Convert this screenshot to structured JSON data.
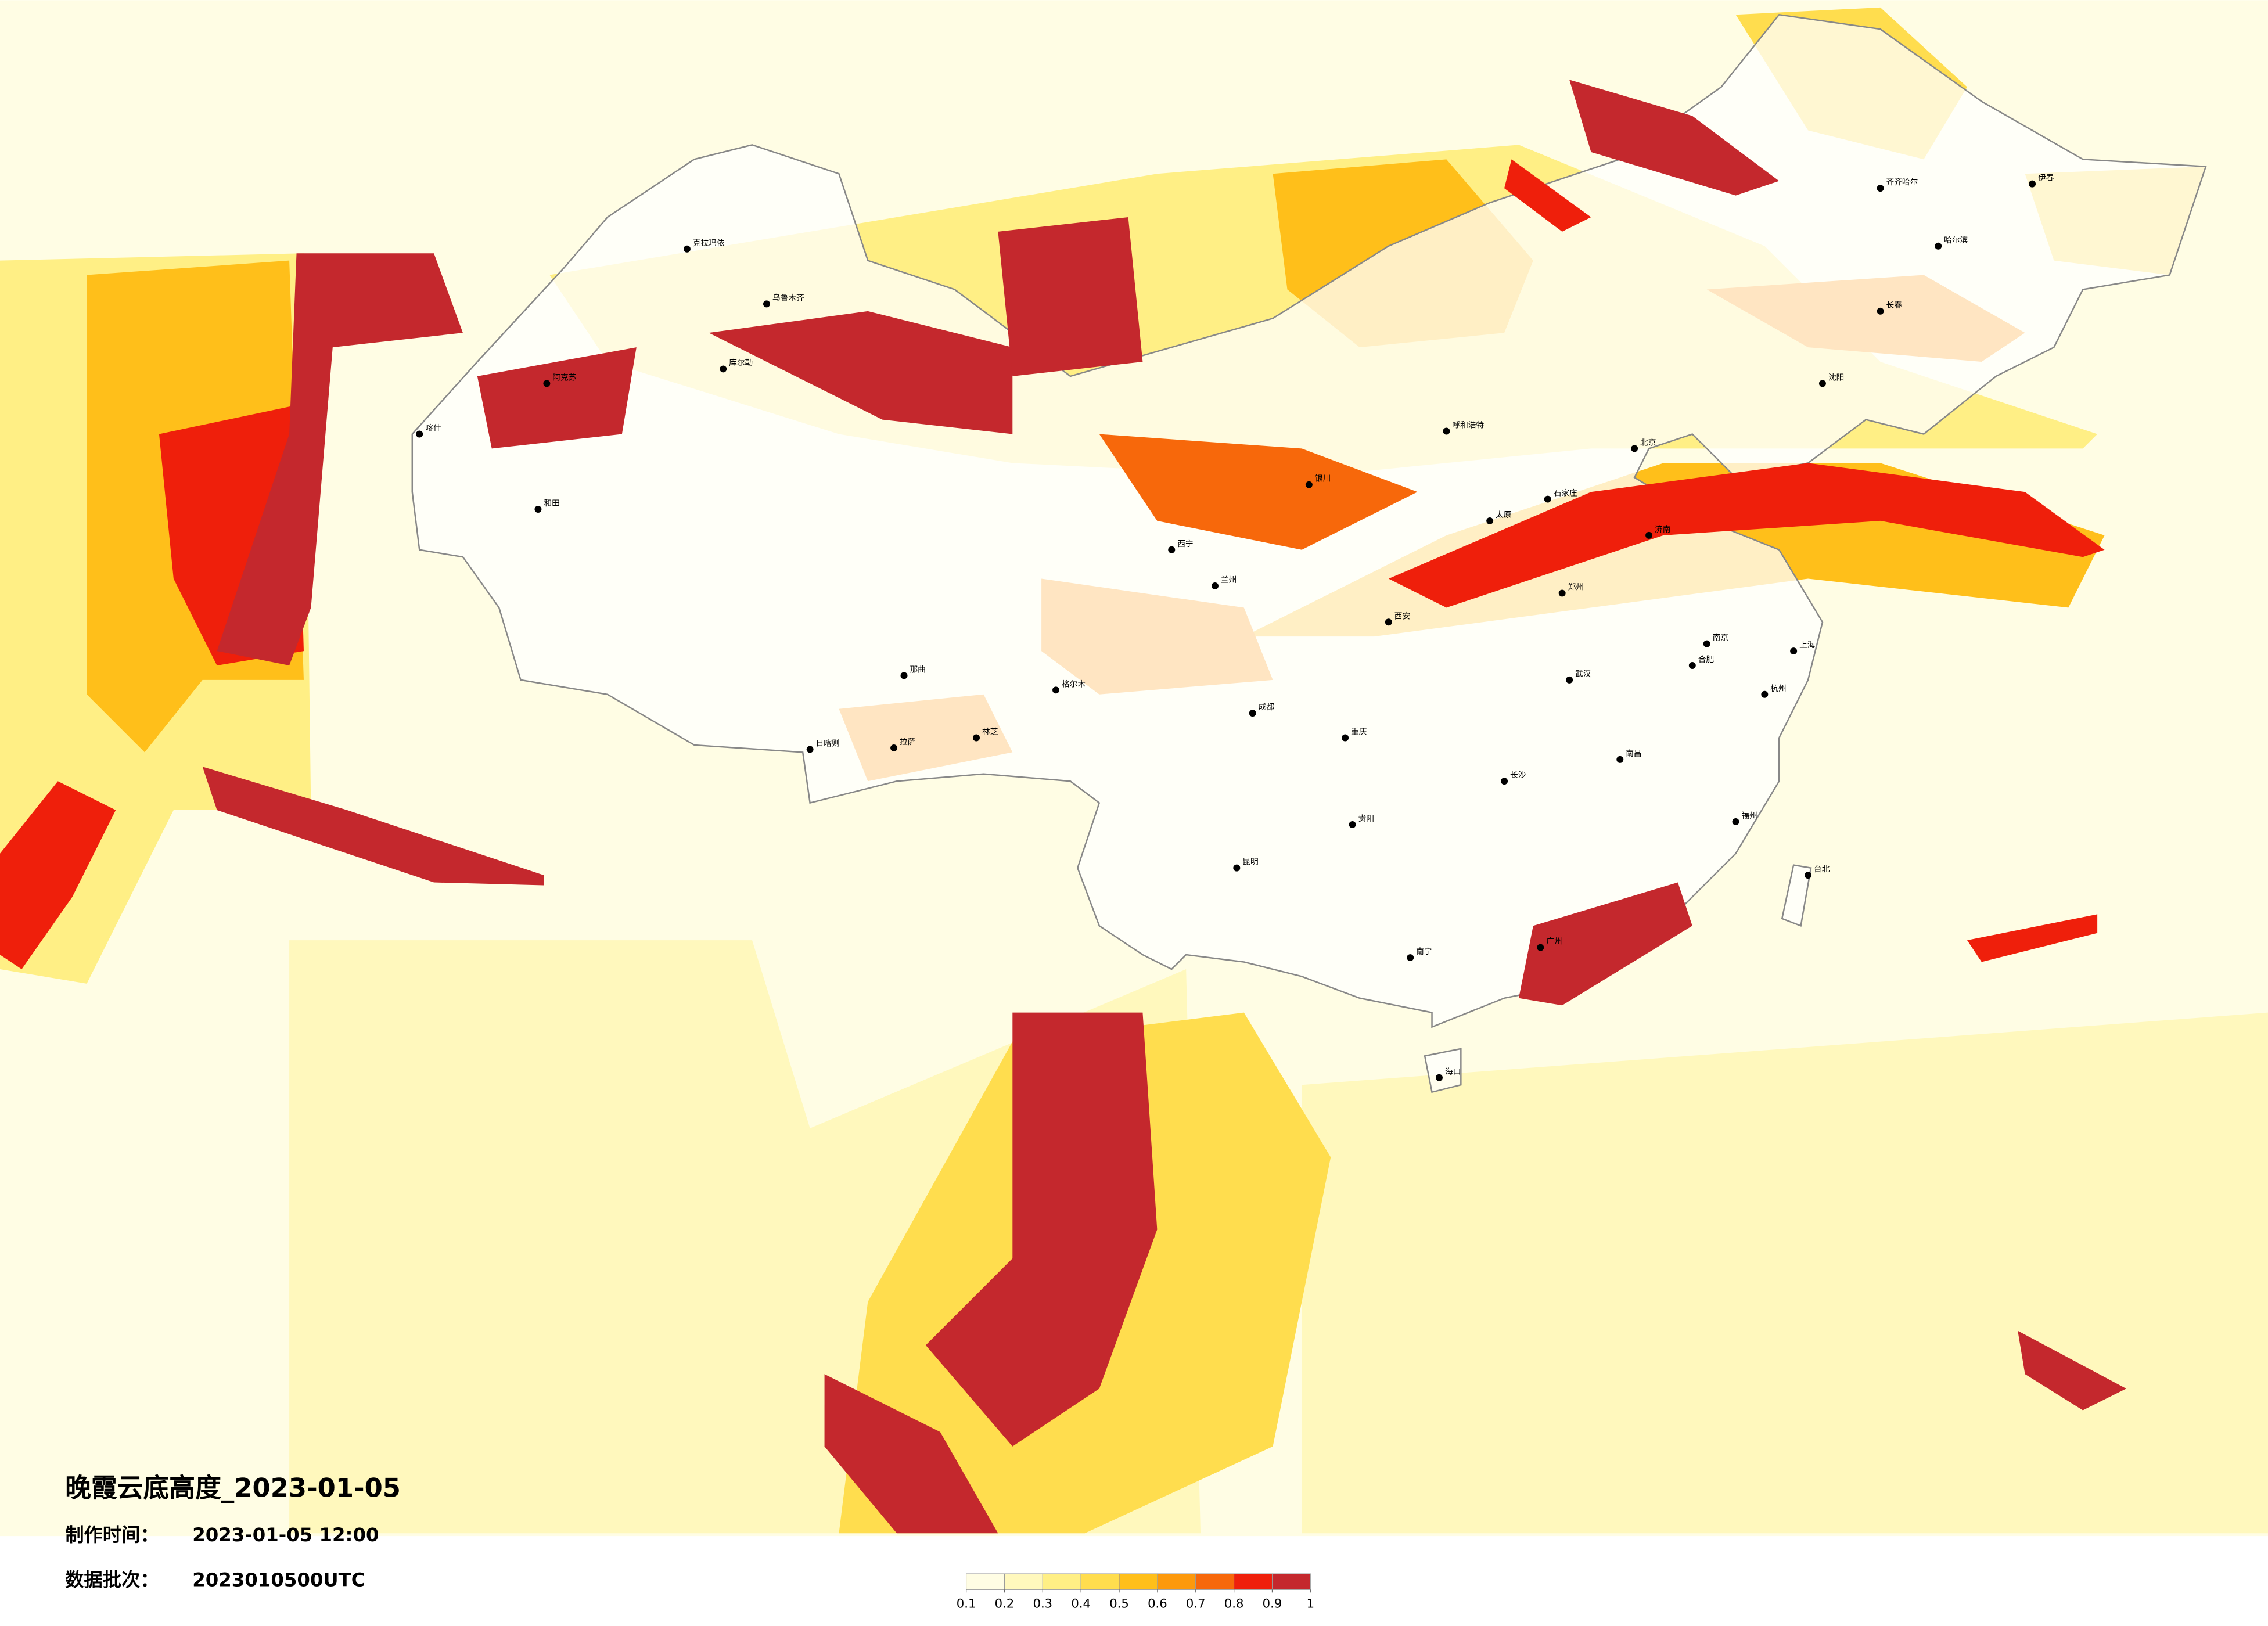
{
  "title": "晚霞云底高度_2023-01-05",
  "info": [
    {
      "label": "制作时间：",
      "value": "2023-01-05 12:00"
    },
    {
      "label": "数据批次：",
      "value": "2023010500UTC"
    }
  ],
  "legend": {
    "ticks": [
      0.1,
      0.2,
      0.3,
      0.4,
      0.5,
      0.6,
      0.7,
      0.8,
      0.9,
      1
    ],
    "colors": [
      "#fffde4",
      "#fff8bd",
      "#ffef85",
      "#ffdd4e",
      "#ffbf1a",
      "#fd990c",
      "#f7680b",
      "#ef1f0b",
      "#c4282d"
    ]
  },
  "cities": [
    "克拉玛依",
    "乌鲁木齐",
    "库尔勒",
    "阿克苏",
    "喀什",
    "和田",
    "日喀则",
    "拉萨",
    "林芝",
    "那曲",
    "格尔木",
    "西宁",
    "银川",
    "兰州",
    "成都",
    "重庆",
    "昆明",
    "贵阳",
    "南宁",
    "广州",
    "长沙",
    "武汉",
    "郑州",
    "西安",
    "北京",
    "上海",
    "南京",
    "杭州",
    "福州",
    "南昌",
    "合肥",
    "济南",
    "太原",
    "石家庄",
    "呼和浩特",
    "沈阳",
    "长春",
    "哈尔滨",
    "齐齐哈尔",
    "伊春",
    "海口",
    "台北"
  ]
}
